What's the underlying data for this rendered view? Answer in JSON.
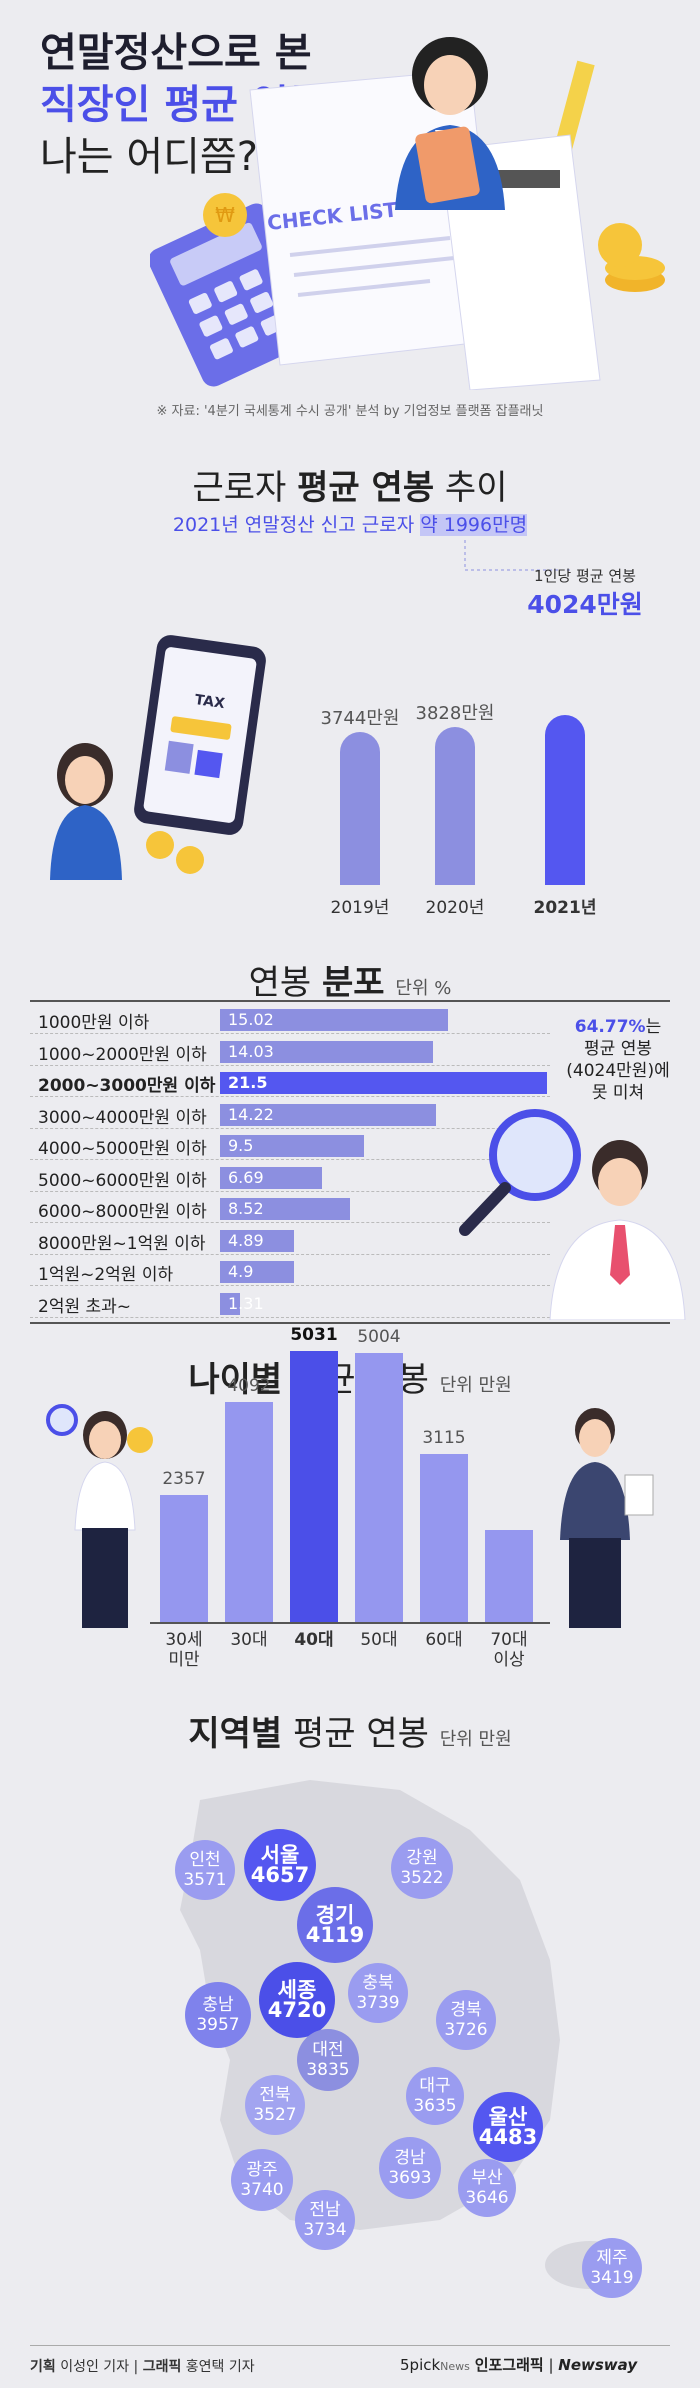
{
  "header": {
    "line1": "연말정산으로 본",
    "line2": "직장인 평균 연봉…",
    "line3": "나는 어디쯤?",
    "source": "※ 자료: '4분기 국세통계 수시 공개' 분석 by 기업정보 플랫폼 잡플래닛",
    "checklist": "CHECK LIST",
    "tax": "TAX"
  },
  "trend": {
    "title_a": "근로자 ",
    "title_b": "평균 연봉",
    "title_c": " 추이",
    "subtitle_a": "2021년 연말정산 신고 근로자 ",
    "subtitle_b": "약 1996만명",
    "callout_small": "1인당 평균 연봉",
    "callout_big": "4024만원"
  },
  "distribution": {
    "title_a": "연봉 ",
    "title_b": "분포",
    "unit": "단위 %",
    "note_highlight": "64.77%",
    "note_rest_1": "는",
    "note_rest_2": "평균 연봉",
    "note_rest_3": "(4024만원)에",
    "note_rest_4": "못 미쳐"
  },
  "age": {
    "title_a": "나이별",
    "title_b": " 평균 연봉",
    "unit": "단위 만원"
  },
  "region": {
    "title_a": "지역별",
    "title_b": " 평균 연봉",
    "unit": "단위 만원",
    "items": [
      {
        "name": "인천",
        "value": "3571"
      },
      {
        "name": "서울",
        "value": "4657"
      },
      {
        "name": "강원",
        "value": "3522"
      },
      {
        "name": "경기",
        "value": "4119"
      },
      {
        "name": "충남",
        "value": "3957"
      },
      {
        "name": "세종",
        "value": "4720"
      },
      {
        "name": "충북",
        "value": "3739"
      },
      {
        "name": "경북",
        "value": "3726"
      },
      {
        "name": "대전",
        "value": "3835"
      },
      {
        "name": "전북",
        "value": "3527"
      },
      {
        "name": "대구",
        "value": "3635"
      },
      {
        "name": "울산",
        "value": "4483"
      },
      {
        "name": "경남",
        "value": "3693"
      },
      {
        "name": "광주",
        "value": "3740"
      },
      {
        "name": "부산",
        "value": "3646"
      },
      {
        "name": "전남",
        "value": "3734"
      },
      {
        "name": "제주",
        "value": "3419"
      }
    ]
  },
  "footer": {
    "plan_label": "기획",
    "plan_name": "이성인 기자",
    "graphic_label": "그래픽",
    "graphic_name": "홍연택 기자",
    "brand1": "5pick",
    "brand2": "News",
    "brand3": "인포그래픽",
    "brand4": "Newsway"
  },
  "chart_data": [
    {
      "type": "bar",
      "categories": [
        "2019년",
        "2020년",
        "2021년"
      ],
      "values": [
        3744,
        3828,
        4024
      ],
      "labels": [
        "3744만원",
        "3828만원",
        "4024만원"
      ]
    },
    {
      "type": "bar",
      "categories": [
        "1000만원 이하",
        "1000~2000만원 이하",
        "2000~3000만원 이하",
        "3000~4000만원 이하",
        "4000~5000만원 이하",
        "5000~6000만원 이하",
        "6000~8000만원 이하",
        "8000만원~1억원 이하",
        "1억원~2억원 이하",
        "2억원 초과~"
      ],
      "values": [
        15.02,
        14.03,
        21.5,
        14.22,
        9.5,
        6.69,
        8.52,
        4.89,
        4.9,
        1.31
      ],
      "labels": [
        "15.02",
        "14.03",
        "21.5",
        "14.22",
        "9.5",
        "6.69",
        "8.52",
        "4.89",
        "4.9",
        "1.31"
      ]
    },
    {
      "type": "bar",
      "categories": [
        "30세 미만",
        "30대",
        "40대",
        "50대",
        "60대",
        "70대 이상"
      ],
      "values": [
        2357,
        4092,
        5031,
        5004,
        3115,
        null
      ],
      "labels": [
        "2357",
        "4092",
        "5031",
        "5004",
        "3115",
        ""
      ]
    }
  ]
}
